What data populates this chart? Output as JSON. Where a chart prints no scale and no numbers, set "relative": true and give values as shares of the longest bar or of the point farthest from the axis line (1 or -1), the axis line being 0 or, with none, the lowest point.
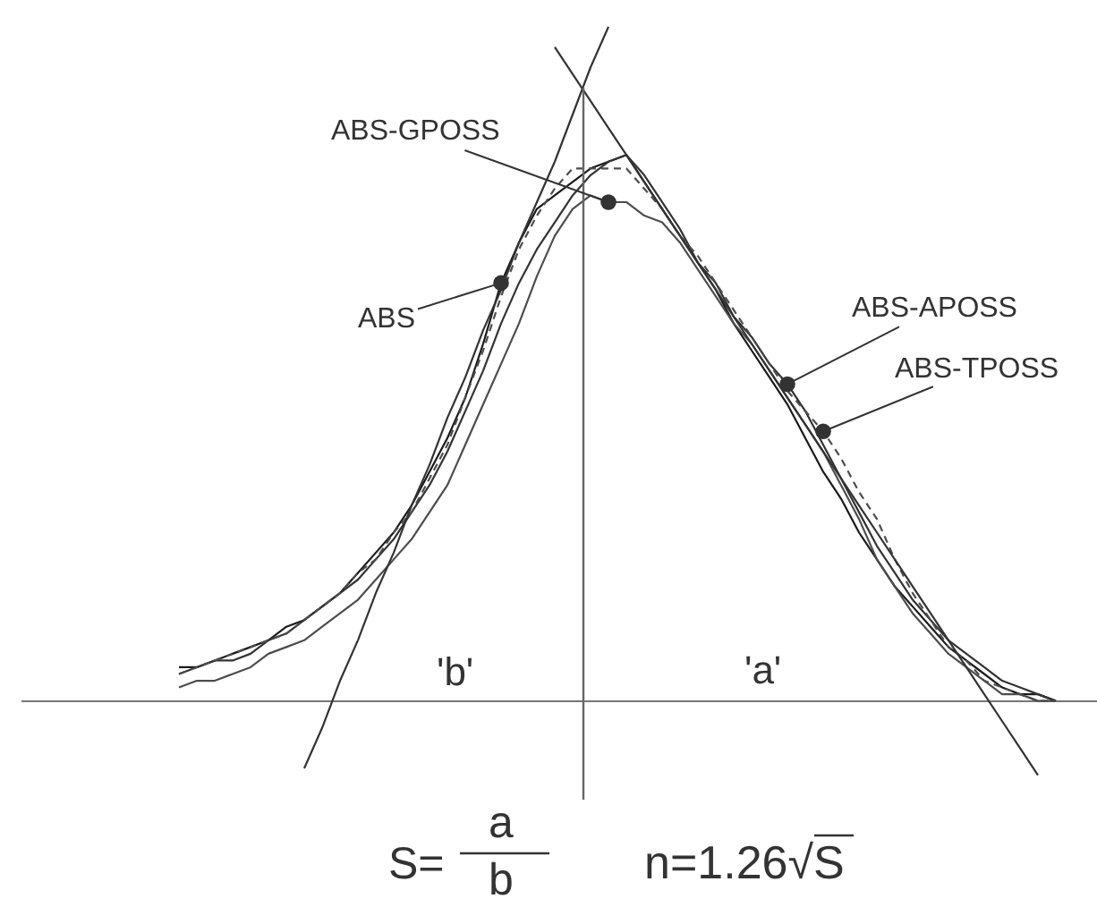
{
  "chart_data": {
    "type": "line",
    "relative": true,
    "legend": false,
    "line_style": "solid",
    "categories": [
      null,
      null,
      null,
      null,
      null,
      null,
      null,
      null,
      null,
      null,
      null,
      null,
      null,
      null,
      null,
      null,
      null,
      null,
      null,
      null,
      null,
      null,
      null,
      null,
      null,
      null,
      null,
      null,
      null,
      null,
      null,
      null,
      null,
      null,
      null,
      null,
      null,
      null,
      null,
      null,
      null,
      null,
      null,
      null,
      null,
      null,
      null,
      null,
      null,
      null
    ],
    "series": [
      {
        "name": "ABS",
        "color": "#1a1a1a",
        "values": [
          0.05,
          0.05,
          0.06,
          0.07,
          0.08,
          0.09,
          0.11,
          0.12,
          0.14,
          0.16,
          0.19,
          0.22,
          0.25,
          0.29,
          0.34,
          0.39,
          0.45,
          0.53,
          0.62,
          0.68,
          0.73,
          0.75,
          0.77,
          0.79,
          0.8,
          0.81,
          0.77,
          0.73,
          0.69,
          0.65,
          0.61,
          0.56,
          0.52,
          0.48,
          0.44,
          0.39,
          0.34,
          0.3,
          0.25,
          0.21,
          0.17,
          0.14,
          0.11,
          0.08,
          0.06,
          0.04,
          0.02,
          0.01,
          0.01,
          0
        ]
      },
      {
        "name": "ABS-GPOSS",
        "color": "#4d4d4d",
        "values": [
          0.02,
          0.03,
          0.03,
          0.04,
          0.05,
          0.07,
          0.08,
          0.09,
          0.11,
          0.13,
          0.15,
          0.18,
          0.21,
          0.24,
          0.28,
          0.32,
          0.38,
          0.44,
          0.5,
          0.56,
          0.63,
          0.69,
          0.73,
          0.75,
          0.74,
          0.74,
          0.72,
          0.71,
          0.68,
          0.64,
          0.6,
          0.56,
          0.53,
          0.49,
          0.45,
          0.41,
          0.37,
          0.32,
          0.27,
          0.21,
          0.17,
          0.13,
          0.1,
          0.07,
          0.05,
          0.03,
          0.01,
          0.01,
          0,
          0
        ]
      },
      {
        "name": "ABS-APOSS",
        "color": "#333333",
        "values": [
          0.04,
          0.05,
          0.06,
          0.06,
          0.07,
          0.09,
          0.1,
          0.12,
          0.14,
          0.16,
          0.18,
          0.21,
          0.24,
          0.28,
          0.32,
          0.37,
          0.43,
          0.49,
          0.56,
          0.62,
          0.67,
          0.71,
          0.75,
          0.78,
          0.8,
          0.81,
          0.78,
          0.74,
          0.7,
          0.65,
          0.62,
          0.57,
          0.54,
          0.5,
          0.47,
          0.43,
          0.38,
          0.33,
          0.28,
          0.23,
          0.19,
          0.15,
          0.12,
          0.09,
          0.07,
          0.05,
          0.03,
          0.02,
          0.01,
          0
        ]
      },
      {
        "name": "ABS-TPOSS",
        "color": "#4d4d4d",
        "line_style": "dashed",
        "values": [
          0.04,
          0.05,
          0.06,
          0.07,
          0.08,
          0.09,
          0.1,
          0.12,
          0.14,
          0.16,
          0.19,
          0.21,
          0.25,
          0.28,
          0.33,
          0.38,
          0.45,
          0.52,
          0.6,
          0.67,
          0.72,
          0.76,
          0.79,
          0.79,
          0.79,
          0.79,
          0.76,
          0.73,
          0.69,
          0.66,
          0.62,
          0.58,
          0.54,
          0.5,
          0.46,
          0.43,
          0.4,
          0.36,
          0.31,
          0.27,
          0.21,
          0.16,
          0.12,
          0.08,
          0.06,
          0.03,
          0.02,
          0.01,
          0,
          0
        ]
      },
      {
        "color": "#333333",
        "values": [
          null,
          null,
          null,
          null,
          null,
          null,
          null,
          -0.1,
          -0.04,
          0.03,
          0.09,
          0.16,
          0.22,
          0.29,
          0.35,
          0.42,
          0.48,
          0.55,
          0.61,
          0.68,
          0.74,
          0.8,
          0.87,
          0.94,
          1.0,
          null,
          null,
          null,
          null,
          null,
          null,
          null,
          null,
          null,
          null,
          null,
          null,
          null,
          null,
          null,
          null,
          null,
          null,
          null,
          null,
          null,
          null,
          null,
          null,
          null
        ]
      },
      {
        "color": "#333333",
        "values": [
          null,
          null,
          null,
          null,
          null,
          null,
          null,
          null,
          null,
          null,
          null,
          null,
          null,
          null,
          null,
          null,
          null,
          null,
          null,
          null,
          null,
          0.97,
          0.93,
          0.89,
          0.85,
          0.81,
          0.77,
          0.73,
          0.69,
          0.65,
          0.61,
          0.57,
          0.53,
          0.49,
          0.45,
          0.41,
          0.37,
          0.33,
          0.29,
          0.25,
          0.21,
          0.17,
          0.13,
          0.09,
          0.05,
          0.01,
          -0.03,
          -0.07,
          -0.11,
          null
        ]
      }
    ],
    "annotations": [
      "'b'",
      "'a'",
      "S=",
      "a",
      "b",
      "n=1.26√S"
    ]
  }
}
